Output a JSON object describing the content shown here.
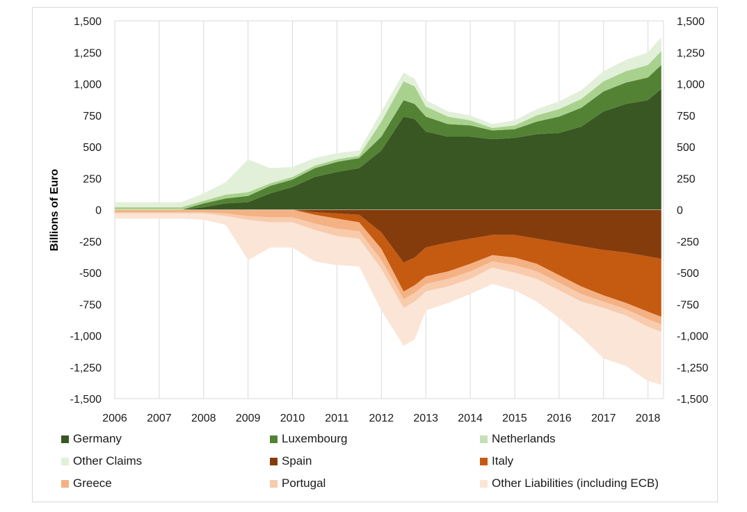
{
  "chart_data": {
    "type": "area",
    "title": "",
    "ylabel": "Billions of Euro",
    "xlabel": "",
    "ylim": [
      -1500,
      1500
    ],
    "yticks": [
      1500,
      1250,
      1000,
      750,
      500,
      250,
      0,
      -250,
      -500,
      -750,
      -1000,
      -1250,
      -1500
    ],
    "ytick_labels": [
      "1,500",
      "1,250",
      "1,000",
      "750",
      "500",
      "250",
      "0",
      "-250",
      "-500",
      "-750",
      "-1,000",
      "-1,250",
      "-1,500"
    ],
    "xlim": [
      2006,
      2018.35
    ],
    "xticks": [
      2006,
      2007,
      2008,
      2009,
      2010,
      2011,
      2012,
      2013,
      2014,
      2015,
      2016,
      2017,
      2018
    ],
    "xtick_labels": [
      "2006",
      "2007",
      "2008",
      "2009",
      "2010",
      "2011",
      "2012",
      "2013",
      "2014",
      "2015",
      "2016",
      "2017",
      "2018"
    ],
    "grid": "vertical",
    "legend_position": "bottom",
    "x": [
      2006.0,
      2006.5,
      2007.0,
      2007.5,
      2008.0,
      2008.5,
      2009.0,
      2009.5,
      2010.0,
      2010.5,
      2011.0,
      2011.5,
      2012.0,
      2012.5,
      2012.75,
      2013.0,
      2013.5,
      2014.0,
      2014.5,
      2015.0,
      2015.5,
      2016.0,
      2016.5,
      2017.0,
      2017.5,
      2018.0,
      2018.3
    ],
    "positive_series": [
      {
        "name": "Germany",
        "color": "#385723",
        "values": [
          0,
          0,
          0,
          0,
          20,
          50,
          60,
          130,
          180,
          260,
          300,
          330,
          470,
          740,
          720,
          620,
          580,
          580,
          560,
          570,
          600,
          610,
          660,
          780,
          840,
          870,
          960
        ]
      },
      {
        "name": "Luxembourg",
        "color": "#548235",
        "values": [
          0,
          0,
          0,
          0,
          30,
          40,
          50,
          60,
          60,
          70,
          80,
          80,
          110,
          130,
          120,
          120,
          100,
          90,
          70,
          70,
          100,
          130,
          150,
          160,
          170,
          180,
          190
        ]
      },
      {
        "name": "Netherlands",
        "color": "#a9d18e",
        "values": [
          20,
          20,
          20,
          20,
          20,
          30,
          30,
          20,
          20,
          20,
          20,
          20,
          120,
          150,
          140,
          80,
          60,
          40,
          20,
          30,
          50,
          60,
          70,
          80,
          90,
          100,
          110
        ]
      },
      {
        "name": "Other Claims",
        "color": "#e2f0d9",
        "values": [
          40,
          40,
          40,
          40,
          60,
          100,
          260,
          120,
          80,
          60,
          50,
          40,
          80,
          70,
          60,
          50,
          40,
          40,
          30,
          40,
          50,
          60,
          70,
          80,
          90,
          100,
          110
        ]
      }
    ],
    "negative_series": [
      {
        "name": "Spain",
        "color": "#843c0c",
        "values": [
          0,
          0,
          0,
          0,
          0,
          0,
          0,
          0,
          0,
          -20,
          -30,
          -40,
          -180,
          -420,
          -380,
          -300,
          -260,
          -230,
          -200,
          -200,
          -230,
          -260,
          -290,
          -320,
          -340,
          -370,
          -390
        ]
      },
      {
        "name": "Italy",
        "color": "#c55a11",
        "values": [
          0,
          0,
          0,
          0,
          0,
          0,
          0,
          0,
          0,
          -20,
          -40,
          -60,
          -130,
          -230,
          -220,
          -230,
          -230,
          -200,
          -160,
          -180,
          -200,
          -260,
          -320,
          -360,
          -400,
          -440,
          -460
        ]
      },
      {
        "name": "Greece",
        "color": "#f4b183",
        "values": [
          -20,
          -20,
          -20,
          -20,
          -20,
          -30,
          -50,
          -60,
          -60,
          -70,
          -80,
          -70,
          -90,
          -60,
          -60,
          -60,
          -60,
          -60,
          -50,
          -60,
          -60,
          -60,
          -60,
          -50,
          -50,
          -60,
          -60
        ]
      },
      {
        "name": "Portugal",
        "color": "#f8cbad",
        "values": [
          -10,
          -10,
          -10,
          -10,
          -10,
          -20,
          -30,
          -40,
          -40,
          -50,
          -60,
          -60,
          -70,
          -70,
          -70,
          -60,
          -60,
          -60,
          -50,
          -60,
          -60,
          -60,
          -60,
          -50,
          -50,
          -60,
          -60
        ]
      },
      {
        "name": "Other Liabilities (including ECB)",
        "color": "#fbe5d6",
        "values": [
          -40,
          -40,
          -40,
          -40,
          -50,
          -70,
          -320,
          -200,
          -200,
          -250,
          -230,
          -220,
          -330,
          -300,
          -300,
          -150,
          -130,
          -120,
          -130,
          -140,
          -180,
          -220,
          -280,
          -400,
          -400,
          -430,
          -420
        ]
      }
    ]
  },
  "legend": [
    {
      "label": "Germany",
      "color": "#385723"
    },
    {
      "label": "Luxembourg",
      "color": "#548235"
    },
    {
      "label": "Netherlands",
      "color": "#c5e0b4"
    },
    {
      "label": "Other Claims",
      "color": "#e2f0d9"
    },
    {
      "label": "Spain",
      "color": "#843c0c"
    },
    {
      "label": "Italy",
      "color": "#c55a11"
    },
    {
      "label": "Greece",
      "color": "#f4b183"
    },
    {
      "label": "Portugal",
      "color": "#f8cbad"
    },
    {
      "label": "Other Liabilities (including ECB)",
      "color": "#fbe5d6"
    }
  ]
}
